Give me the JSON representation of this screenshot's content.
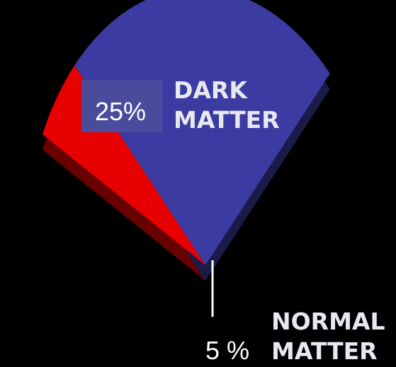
{
  "chart_data": {
    "type": "pie",
    "categories": [
      "DARK MATTER",
      "NORMAL MATTER"
    ],
    "values": [
      25,
      5
    ],
    "value_labels": [
      "25%",
      "5 %"
    ],
    "colors": [
      "#3b3ba2",
      "#e60000"
    ]
  }
}
